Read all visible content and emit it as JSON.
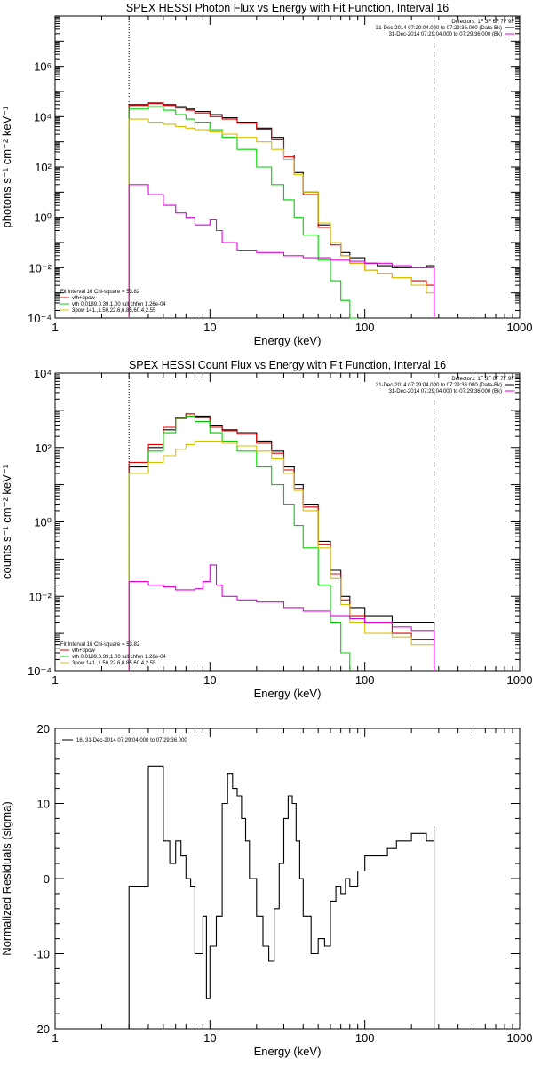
{
  "chart_data": [
    {
      "type": "line",
      "title": "SPEX HESSI Photon Flux vs Energy with Fit Function, Interval 16",
      "xlabel": "Energy (keV)",
      "ylabel": "photons s⁻¹ cm⁻² keV⁻¹",
      "xscale": "log",
      "yscale": "log",
      "xlim": [
        1,
        1000
      ],
      "ylim": [
        0.0001,
        100000000
      ],
      "xticks": [
        "1",
        "10",
        "100",
        "1000"
      ],
      "yticks": [
        "10⁻⁴",
        "10⁻²",
        "10⁰",
        "10²",
        "10⁴",
        "10⁶"
      ],
      "vlines": [
        {
          "x": 3,
          "style": "dotted"
        },
        {
          "x": 280,
          "style": "dashed"
        }
      ],
      "legend_top": {
        "detectors": "Detectors: 1F 3F 6F 7F 9F",
        "rows": [
          {
            "text": "31-Dec-2014 07:29:04.000 to 07:29:36.000 (Data-Bk)",
            "color": "#000000"
          },
          {
            "text": "31-Dec-2014 07:29:04.000 to 07:29:36.000 (Bk)",
            "color": "#e000e0"
          }
        ]
      },
      "legend_bottom": [
        {
          "text": "Fit Interval 16    Chi-square = 53.82",
          "color": "#000000"
        },
        {
          "text": "vth+3pow",
          "color": "#e00000"
        },
        {
          "text": "vth 0.0189,0.39,1.00  full chfen 1.26e-04",
          "color": "#00d000"
        },
        {
          "text": "3pow 141.,1.50,22.6,6.85,60.4,2.55",
          "color": "#d8c000"
        }
      ],
      "series": [
        {
          "name": "Data-Bk",
          "color": "#000000",
          "x": [
            3,
            4,
            5,
            6,
            7,
            8,
            10,
            12,
            15,
            20,
            25,
            30,
            35,
            40,
            50,
            60,
            70,
            80,
            100,
            120,
            150,
            200,
            250,
            280
          ],
          "y": [
            30000,
            35000,
            30000,
            25000,
            20000,
            16000,
            12000,
            9000,
            6000,
            3500,
            1500,
            300,
            60,
            10,
            0.5,
            0.1,
            0.04,
            0.025,
            0.015,
            0.012,
            0.01,
            0.01,
            0.012,
            0.001
          ]
        },
        {
          "name": "vth+3pow",
          "color": "#e00000",
          "x": [
            3,
            4,
            5,
            6,
            7,
            8,
            10,
            12,
            15,
            20,
            25,
            30,
            35,
            40,
            50,
            60,
            70,
            80,
            100,
            120,
            150,
            200,
            250,
            280
          ],
          "y": [
            28000,
            33000,
            28000,
            22000,
            18000,
            14000,
            10000,
            8000,
            5500,
            3200,
            1200,
            250,
            50,
            8,
            0.4,
            0.08,
            0.03,
            0.015,
            0.008,
            0.006,
            0.004,
            0.003,
            0.002,
            0.001
          ]
        },
        {
          "name": "vth",
          "color": "#00d000",
          "x": [
            3,
            4,
            5,
            6,
            7,
            8,
            10,
            12,
            15,
            20,
            25,
            30,
            35,
            40,
            50,
            60,
            70,
            80,
            90
          ],
          "y": [
            20000,
            25000,
            18000,
            12000,
            8000,
            6000,
            3000,
            1500,
            500,
            100,
            20,
            5,
            1,
            0.2,
            0.02,
            0.003,
            0.0005,
            0.0001,
            0.0001
          ]
        },
        {
          "name": "3pow",
          "color": "#d8c000",
          "x": [
            3,
            4,
            5,
            6,
            7,
            8,
            10,
            12,
            15,
            20,
            25,
            30,
            35,
            40,
            50,
            60,
            70,
            80,
            100,
            120,
            150,
            200,
            250,
            280
          ],
          "y": [
            8000,
            6000,
            5000,
            4000,
            3500,
            3000,
            2500,
            2000,
            1500,
            1000,
            500,
            200,
            50,
            10,
            0.6,
            0.1,
            0.03,
            0.015,
            0.008,
            0.006,
            0.004,
            0.002,
            0.001,
            0.0001
          ]
        },
        {
          "name": "Bk",
          "color": "#e000e0",
          "x": [
            3,
            4,
            5,
            6,
            7,
            8,
            9,
            10,
            11,
            12,
            15,
            20,
            30,
            40,
            60,
            80,
            100,
            150,
            200,
            280
          ],
          "y": [
            20,
            8,
            3,
            1.5,
            1,
            0.5,
            0.5,
            0.8,
            0.3,
            0.1,
            0.05,
            0.04,
            0.03,
            0.025,
            0.02,
            0.018,
            0.015,
            0.012,
            0.01,
            0.006
          ]
        }
      ]
    },
    {
      "type": "line",
      "title": "SPEX HESSI Count Flux vs Energy with Fit Function, Interval 16",
      "xlabel": "Energy (keV)",
      "ylabel": "counts s⁻¹ cm⁻² keV⁻¹",
      "xscale": "log",
      "yscale": "log",
      "xlim": [
        1,
        1000
      ],
      "ylim": [
        0.0001,
        10000
      ],
      "xticks": [
        "1",
        "10",
        "100",
        "1000"
      ],
      "yticks": [
        "10⁻⁴",
        "10⁻²",
        "10⁰",
        "10²",
        "10⁴"
      ],
      "vlines": [
        {
          "x": 3,
          "style": "dotted"
        },
        {
          "x": 280,
          "style": "dashed"
        }
      ],
      "legend_top": {
        "detectors": "Detectors: 1F 3F 6F 7F 9F",
        "rows": [
          {
            "text": "31-Dec-2014 07:29:04.000 to 07:29:36.000 (Data-Bk)",
            "color": "#000000"
          },
          {
            "text": "31-Dec-2014 07:29:04.000 to 07:29:36.000 (Bk)",
            "color": "#e000e0"
          }
        ]
      },
      "legend_bottom": [
        {
          "text": "Fit Interval 16    Chi-square = 53.82",
          "color": "#000000"
        },
        {
          "text": "vth+3pow",
          "color": "#e00000"
        },
        {
          "text": "vth 0.0189,0.39,1.00  full chfen 1.26e-04",
          "color": "#00d000"
        },
        {
          "text": "3pow 141.,1.50,22.6,6.85,60.4,2.55",
          "color": "#d8c000"
        }
      ],
      "series": [
        {
          "name": "Data-Bk",
          "color": "#000000",
          "x": [
            3,
            4,
            5,
            6,
            7,
            8,
            10,
            12,
            15,
            20,
            25,
            30,
            35,
            40,
            50,
            60,
            70,
            80,
            100,
            150,
            200,
            280
          ],
          "y": [
            30,
            100,
            300,
            600,
            800,
            700,
            400,
            300,
            250,
            150,
            80,
            30,
            10,
            3,
            0.3,
            0.05,
            0.01,
            0.005,
            0.003,
            0.002,
            0.002,
            0.001
          ]
        },
        {
          "name": "vth+3pow",
          "color": "#e00000",
          "x": [
            3,
            4,
            5,
            6,
            7,
            8,
            10,
            12,
            15,
            20,
            25,
            30,
            35,
            40,
            50,
            60,
            70,
            80,
            100,
            150,
            200,
            280
          ],
          "y": [
            40,
            120,
            350,
            650,
            800,
            650,
            350,
            280,
            230,
            130,
            70,
            25,
            8,
            2.5,
            0.25,
            0.04,
            0.008,
            0.003,
            0.002,
            0.001,
            0.0007,
            0.0003
          ]
        },
        {
          "name": "vth",
          "color": "#00d000",
          "x": [
            3,
            4,
            5,
            6,
            7,
            8,
            10,
            12,
            15,
            20,
            25,
            30,
            35,
            40,
            50,
            60,
            70,
            80
          ],
          "y": [
            20,
            80,
            250,
            600,
            700,
            500,
            250,
            150,
            80,
            30,
            10,
            3,
            0.8,
            0.2,
            0.02,
            0.002,
            0.0003,
            0.0001
          ]
        },
        {
          "name": "3pow",
          "color": "#d8c000",
          "x": [
            3,
            4,
            5,
            6,
            7,
            8,
            10,
            12,
            15,
            20,
            25,
            30,
            35,
            40,
            50,
            60,
            70,
            80,
            100,
            150,
            200,
            280
          ],
          "y": [
            20,
            40,
            60,
            90,
            120,
            150,
            150,
            130,
            110,
            80,
            50,
            20,
            7,
            2,
            0.2,
            0.03,
            0.006,
            0.002,
            0.001,
            0.0008,
            0.0005,
            0.0002
          ]
        },
        {
          "name": "Bk",
          "color": "#e000e0",
          "x": [
            3,
            4,
            5,
            6,
            7,
            8,
            9,
            10,
            11,
            12,
            15,
            20,
            30,
            40,
            60,
            80,
            100,
            150,
            200,
            280
          ],
          "y": [
            0.025,
            0.02,
            0.018,
            0.015,
            0.015,
            0.016,
            0.025,
            0.07,
            0.02,
            0.01,
            0.008,
            0.007,
            0.005,
            0.004,
            0.003,
            0.0025,
            0.002,
            0.0015,
            0.0012,
            0.001
          ]
        }
      ]
    },
    {
      "type": "line",
      "title": "",
      "xlabel": "Energy (keV)",
      "ylabel": "Normalized Residuals (sigma)",
      "xscale": "log",
      "yscale": "linear",
      "xlim": [
        1,
        1000
      ],
      "ylim": [
        -20,
        20
      ],
      "xticks": [
        "1",
        "10",
        "100",
        "1000"
      ],
      "yticks": [
        "-20",
        "-10",
        "0",
        "10",
        "20"
      ],
      "legend": {
        "text": "16. 31-Dec-2014 07:29:04.000 to 07:29:36.000",
        "color": "#000000"
      },
      "series": [
        {
          "name": "16. 31-Dec-2014 07:29:04.000 to 07:29:36.000",
          "color": "#000000",
          "x": [
            3,
            4,
            4.5,
            5,
            5.5,
            6,
            6.5,
            7,
            7.5,
            8,
            8.5,
            9,
            9.5,
            10,
            11,
            12,
            13,
            14,
            15,
            16,
            17,
            18,
            20,
            22,
            24,
            26,
            28,
            30,
            32,
            34,
            36,
            38,
            40,
            45,
            50,
            55,
            60,
            65,
            70,
            75,
            80,
            90,
            100,
            120,
            140,
            160,
            180,
            200,
            220,
            250,
            280
          ],
          "y": [
            -1,
            15,
            15,
            5,
            2,
            5,
            3,
            0,
            -1,
            -10,
            -10,
            -5,
            -16,
            -9,
            -5,
            10,
            14,
            12,
            11,
            8,
            5,
            0,
            -5,
            -9,
            -11,
            -4,
            2,
            8,
            11,
            10,
            5,
            0,
            -5,
            -10,
            -8,
            -9,
            -3,
            -1,
            -2,
            0,
            -1,
            1,
            3,
            3,
            4,
            5,
            5,
            6,
            6,
            5,
            7
          ]
        }
      ]
    }
  ]
}
